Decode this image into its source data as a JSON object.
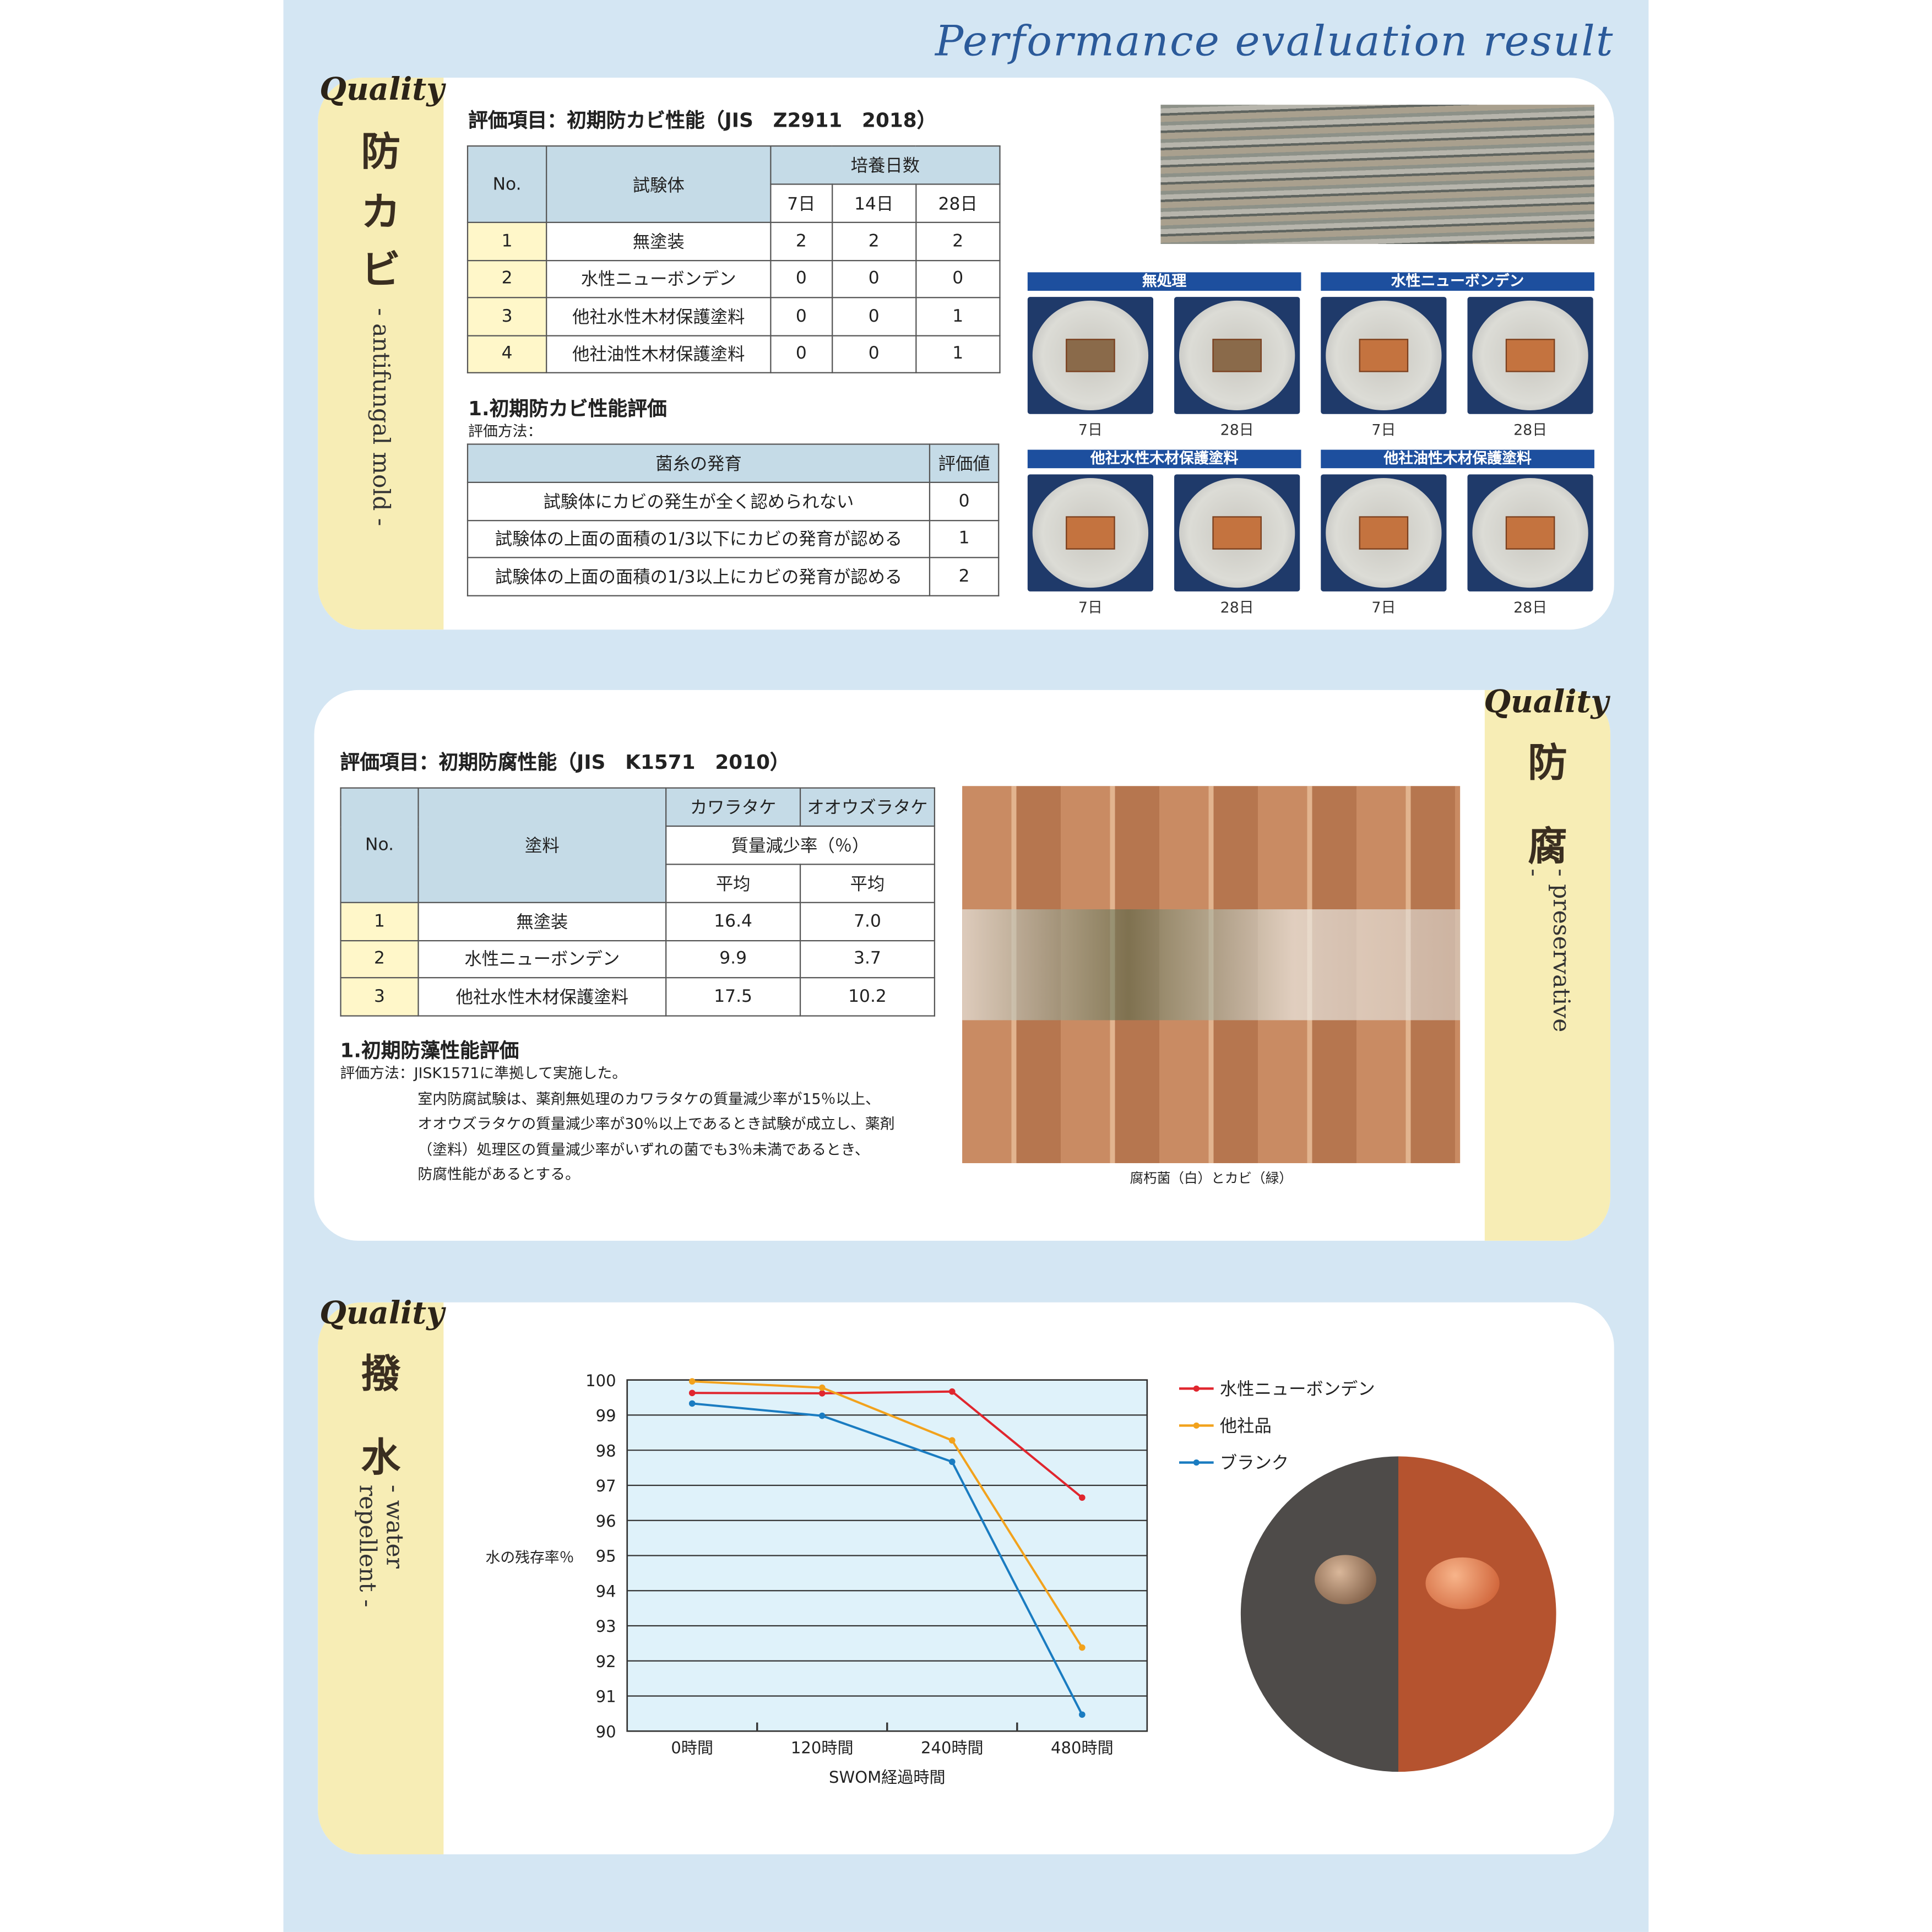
{
  "title": "Performance evaluation result",
  "quality_label": "Quality",
  "antifungal": {
    "kanji": [
      "防",
      "カ",
      "ビ"
    ],
    "subtitle": "- antifungal mold -",
    "heading": "評価項目：初期防カビ性能（JIS　Z2911　2018）",
    "table": {
      "h_no": "No.",
      "h_specimen": "試験体",
      "h_days": "培養日数",
      "days": [
        "7日",
        "14日",
        "28日"
      ],
      "rows": [
        [
          "1",
          "無塗装",
          "2",
          "2",
          "2"
        ],
        [
          "2",
          "水性ニューボンデン",
          "0",
          "0",
          "0"
        ],
        [
          "3",
          "他社水性木材保護塗料",
          "0",
          "0",
          "1"
        ],
        [
          "4",
          "他社油性木材保護塗料",
          "0",
          "0",
          "1"
        ]
      ]
    },
    "eval_title": "1.初期防カビ性能評価",
    "eval_method": "評価方法：",
    "eval_table": {
      "h_growth": "菌糸の発育",
      "h_score": "評価値",
      "rows": [
        [
          "試験体にカビの発生が全く認められない",
          "0"
        ],
        [
          "試験体の上面の面積の1/3以下にカビの発育が認める",
          "1"
        ],
        [
          "試験体の上面の面積の1/3以上にカビの発育が認める",
          "2"
        ]
      ]
    },
    "photo_groups": [
      {
        "label": "無処理",
        "days": [
          "7日",
          "28日"
        ]
      },
      {
        "label": "水性ニューボンデン",
        "days": [
          "7日",
          "28日"
        ]
      },
      {
        "label": "他社水性木材保護塗料",
        "days": [
          "7日",
          "28日"
        ]
      },
      {
        "label": "他社油性木材保護塗料",
        "days": [
          "7日",
          "28日"
        ]
      }
    ]
  },
  "preservative": {
    "kanji": [
      "防",
      "腐"
    ],
    "subtitle": "- preservative -",
    "heading": "評価項目：初期防腐性能（JIS　K1571　2010）",
    "table": {
      "h_no": "No.",
      "h_paint": "塗料",
      "h_fungus1": "カワラタケ",
      "h_fungus2": "オオウズラタケ",
      "h_rate": "質量減少率（％）",
      "h_avg": "平均",
      "rows": [
        [
          "1",
          "無塗装",
          "16.4",
          "7.0"
        ],
        [
          "2",
          "水性ニューボンデン",
          "9.9",
          "3.7"
        ],
        [
          "3",
          "他社水性木材保護塗料",
          "17.5",
          "10.2"
        ]
      ]
    },
    "eval_title": "1.初期防藻性能評価",
    "eval_lines": [
      "評価方法：JISK1571に準拠して実施した。",
      "室内防腐試験は、薬剤無処理のカワラタケの質量減少率が15％以上、",
      "オオウズラタケの質量減少率が30％以上であるとき試験が成立し、薬剤",
      "（塗料）処理区の質量減少率がいずれの菌でも3％未満であるとき、",
      "防腐性能があるとする。"
    ],
    "photo_caption": "腐朽菌（白）とカビ（緑）"
  },
  "water": {
    "kanji": [
      "撥",
      "水"
    ],
    "subtitle": "- water repellent -"
  },
  "chart_data": {
    "type": "line",
    "categories": [
      "0時間",
      "120時間",
      "240時間",
      "480時間"
    ],
    "xlabel": "SWOM経過時間",
    "ylabel": "水の残存率％",
    "ylim": [
      90,
      100
    ],
    "yticks": [
      90,
      91,
      92,
      93,
      94,
      95,
      96,
      97,
      98,
      99,
      100
    ],
    "grid": true,
    "legend": "right",
    "series": [
      {
        "name": "水性ニューボンデン",
        "color": "#e0262e",
        "values": [
          99.63,
          99.62,
          99.67,
          96.65
        ]
      },
      {
        "name": "他社品",
        "color": "#f2a21c",
        "values": [
          99.96,
          99.78,
          98.28,
          92.38
        ]
      },
      {
        "name": "ブランク",
        "color": "#1a7cc1",
        "values": [
          99.33,
          98.98,
          97.67,
          90.47
        ]
      }
    ]
  }
}
